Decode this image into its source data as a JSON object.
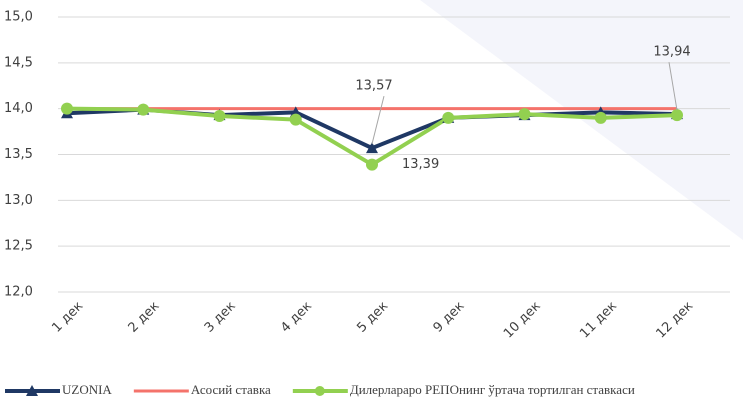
{
  "chart_data": {
    "type": "line",
    "categories": [
      "1 дек",
      "2 дек",
      "3 дек",
      "4 дек",
      "5 дек",
      "9 дек",
      "10 дек",
      "11 дек",
      "12 дек"
    ],
    "series": [
      {
        "name": "UZONIA",
        "color": "#1f3864",
        "marker": "triangle",
        "values": [
          13.95,
          13.99,
          13.93,
          13.96,
          13.57,
          13.9,
          13.93,
          13.96,
          13.94
        ],
        "value_labels": [
          null,
          null,
          null,
          null,
          "13,57",
          null,
          null,
          null,
          "13,94"
        ]
      },
      {
        "name": "Асосий ставка",
        "color": "#f4736b",
        "marker": "none",
        "values": [
          14.0,
          14.0,
          14.0,
          14.0,
          14.0,
          14.0,
          14.0,
          14.0,
          14.0
        ]
      },
      {
        "name": "Дилерлараро РЕПОнинг ўртача тортилган ставкаси",
        "color": "#92d050",
        "marker": "circle",
        "values": [
          14.0,
          13.99,
          13.92,
          13.88,
          13.39,
          13.9,
          13.94,
          13.9,
          13.93
        ],
        "value_labels": [
          null,
          null,
          null,
          null,
          "13,39",
          null,
          null,
          null,
          null
        ]
      }
    ],
    "ylim": [
      12.0,
      15.0
    ],
    "yticks": [
      {
        "value": 12.0,
        "label": "12,0"
      },
      {
        "value": 12.5,
        "label": "12,5"
      },
      {
        "value": 13.0,
        "label": "13,0"
      },
      {
        "value": 13.5,
        "label": "13,5"
      },
      {
        "value": 14.0,
        "label": "14,0"
      },
      {
        "value": 14.5,
        "label": "14,5"
      },
      {
        "value": 15.0,
        "label": "15,0"
      }
    ],
    "grid": true,
    "legend": "bottom"
  }
}
